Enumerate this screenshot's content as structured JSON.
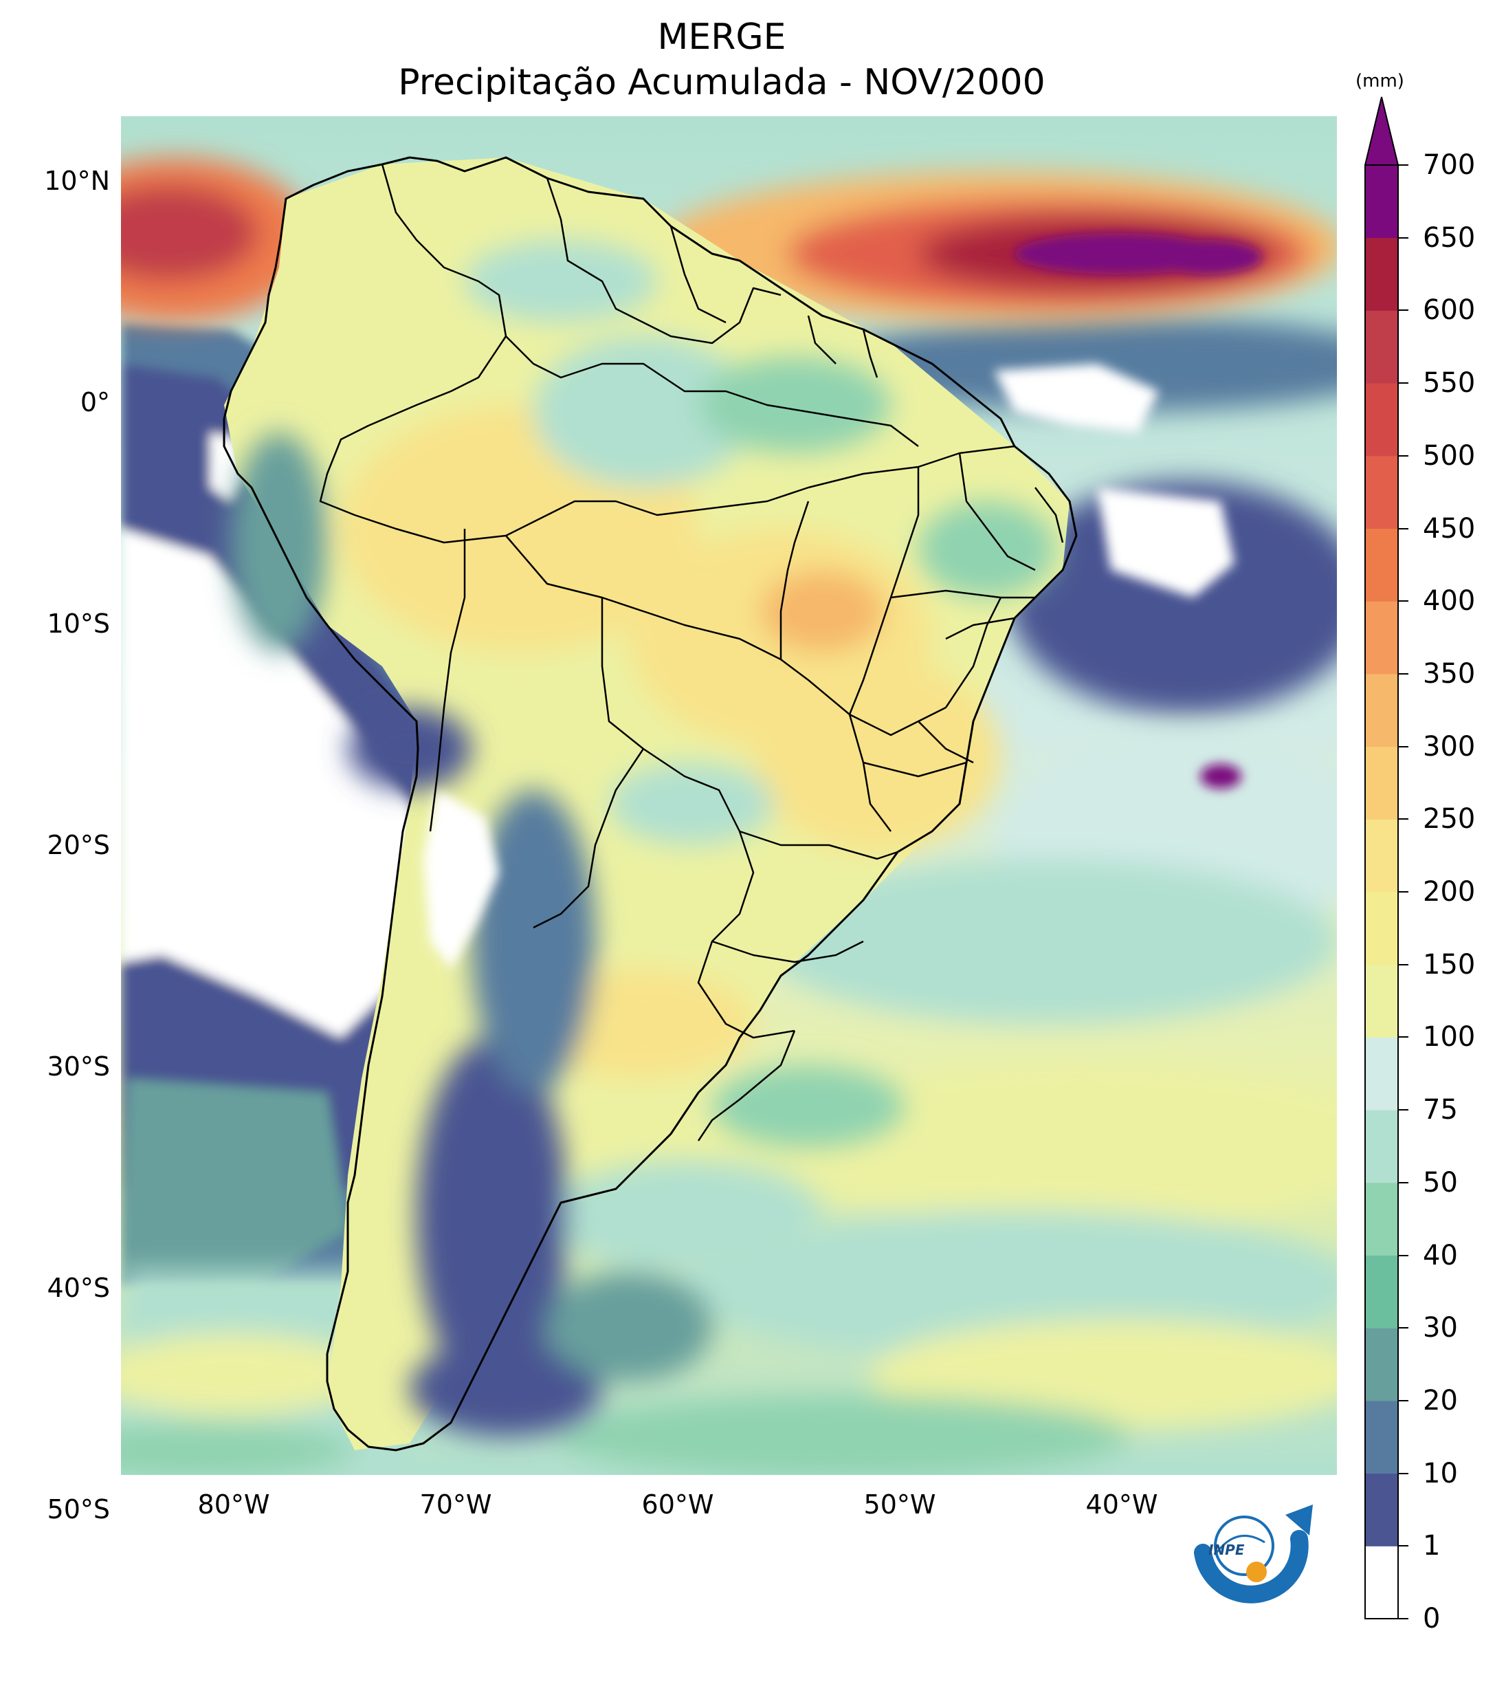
{
  "header": {
    "title": "MERGE",
    "subtitle": "Precipitação Acumulada - NOV/2000"
  },
  "map": {
    "region": "South America",
    "lat_ticks": [
      "10°N",
      "0°",
      "10°S",
      "20°S",
      "30°S",
      "40°S",
      "50°S"
    ],
    "lon_ticks": [
      "80°W",
      "70°W",
      "60°W",
      "50°W",
      "40°W"
    ]
  },
  "colorbar": {
    "unit": "(mm)",
    "levels": [
      "0",
      "1",
      "10",
      "20",
      "30",
      "40",
      "50",
      "75",
      "100",
      "150",
      "200",
      "250",
      "300",
      "350",
      "400",
      "450",
      "500",
      "550",
      "600",
      "650",
      "700"
    ],
    "colors": [
      "#ffffff",
      "#4a5592",
      "#577b9f",
      "#679f9c",
      "#6cbf9e",
      "#90d3b0",
      "#b1e0d0",
      "#d2ebe6",
      "#ecf1a2",
      "#f3ec90",
      "#f8e38a",
      "#f8cd76",
      "#f6b86b",
      "#f39a5c",
      "#ee7c4b",
      "#e2604b",
      "#d34947",
      "#c03d4a",
      "#a8203c",
      "#7b0a7f"
    ],
    "extend_color": "#7b0a7f"
  },
  "logo": {
    "text": "INPE"
  }
}
